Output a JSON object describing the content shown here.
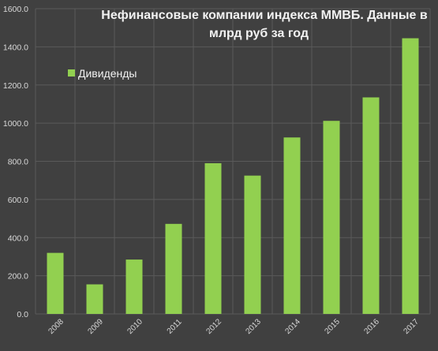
{
  "chart_data": {
    "type": "bar",
    "title_lines": [
      "Нефинансовые компании индекса ММВБ. Данные в",
      "млрд руб за год"
    ],
    "categories": [
      "2008",
      "2009",
      "2010",
      "2011",
      "2012",
      "2013",
      "2014",
      "2015",
      "2016",
      "2017"
    ],
    "series": [
      {
        "name": "Дивиденды",
        "color": "#92d050",
        "values": [
          320,
          155,
          285,
          472,
          790,
          725,
          925,
          1012,
          1135,
          1445
        ]
      }
    ],
    "ylim": [
      0,
      1600
    ],
    "yticks": [
      "0.0",
      "200.0",
      "400.0",
      "600.0",
      "800.0",
      "1000.0",
      "1200.0",
      "1400.0",
      "1600.0"
    ],
    "grid": true,
    "legend_position": "top-left",
    "colors": {
      "background": "#404040",
      "grid": "#5a5a5a"
    }
  }
}
